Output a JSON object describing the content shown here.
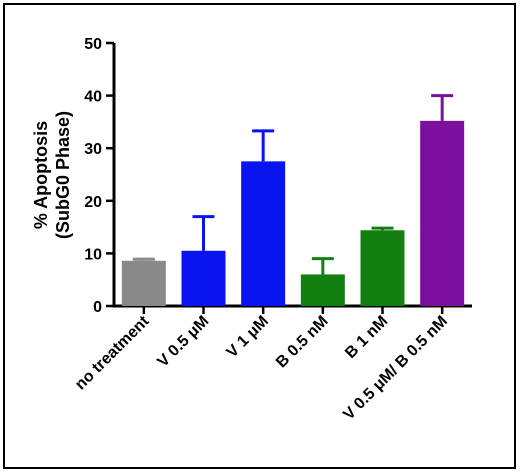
{
  "chart_data": {
    "type": "bar",
    "title": "",
    "xlabel": "",
    "ylabel": [
      "% Apoptosis",
      "(SubG0 Phase)"
    ],
    "ylim": [
      0,
      50
    ],
    "yticks": [
      0,
      10,
      20,
      30,
      40,
      50
    ],
    "grid": false,
    "legend": "none",
    "categories": [
      "no treatment",
      "V 0.5 μM",
      "V 1 μM",
      "B 0.5 nM",
      "B 1 nM",
      "V 0.5 μM/ B 0.5 nM"
    ],
    "values": [
      8.6,
      10.5,
      27.5,
      6.0,
      14.4,
      35.2
    ],
    "error_upper": [
      0.3,
      6.5,
      5.8,
      3.0,
      0.4,
      4.8
    ],
    "colors": [
      "#898989",
      "#0a14f0",
      "#0a14f0",
      "#118011",
      "#118011",
      "#7b0f9e"
    ]
  }
}
